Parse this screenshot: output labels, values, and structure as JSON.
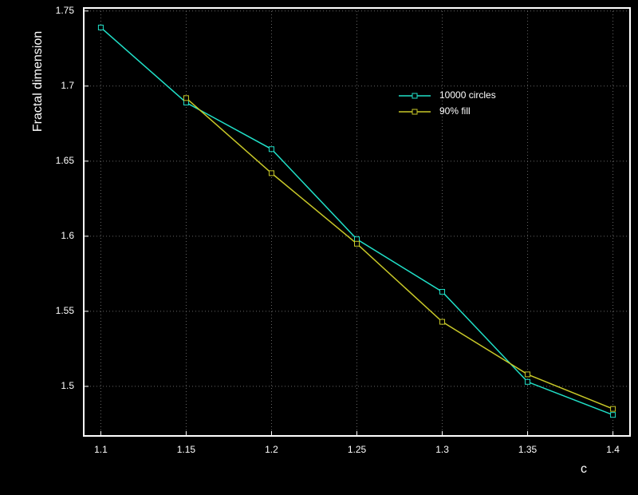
{
  "chart_data": {
    "type": "line",
    "x": [
      1.1,
      1.15,
      1.2,
      1.25,
      1.3,
      1.35,
      1.4
    ],
    "series": [
      {
        "name": "10000 circles",
        "color": "#20e0c8",
        "values": [
          1.739,
          1.689,
          1.658,
          1.598,
          1.563,
          1.503,
          1.481
        ]
      },
      {
        "name": "90% fill",
        "color": "#c8c828",
        "values": [
          null,
          1.692,
          1.642,
          1.595,
          1.543,
          1.508,
          1.485
        ]
      }
    ],
    "xlabel": "c",
    "ylabel": "Fractal dimension",
    "xlim": [
      1.09,
      1.41
    ],
    "ylim": [
      1.467,
      1.752
    ],
    "xticks": [
      1.1,
      1.15,
      1.2,
      1.25,
      1.3,
      1.35,
      1.4
    ],
    "yticks": [
      1.5,
      1.55,
      1.6,
      1.65,
      1.7,
      1.75
    ],
    "grid": true,
    "legend": "upper right"
  }
}
